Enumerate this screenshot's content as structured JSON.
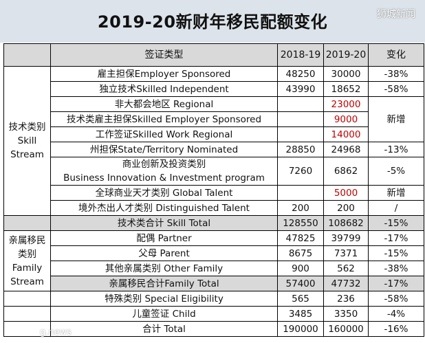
{
  "title": "2019-20新财年移民配额变化",
  "watermark": "狮城新闻",
  "footer_watermark": "g.news",
  "headers": {
    "type": "签证类型",
    "fy1": "2018-19",
    "fy2": "2019-20",
    "change": "变化"
  },
  "categories": {
    "skill": "技术类别\nSkill\nStream",
    "family": "亲属移民\n类别\nFamily\nStream"
  },
  "rows": [
    {
      "name": "雇主担保Employer Sponsored",
      "v1": "48250",
      "v2": "30000",
      "change": "-38%"
    },
    {
      "name": "独立技术Skilled Independent",
      "v1": "43990",
      "v2": "18652",
      "change": "-58%"
    },
    {
      "name": "非大都会地区 Regional",
      "v1": "",
      "v2": "23000",
      "change": "新增"
    },
    {
      "name": "技术类雇主担保Skilled Employer Sponsored",
      "v1": "",
      "v2": "9000",
      "change": ""
    },
    {
      "name": "工作签证Skilled Work Regional",
      "v1": "",
      "v2": "14000",
      "change": ""
    },
    {
      "name": "州担保State/Territory Nominated",
      "v1": "28850",
      "v2": "24968",
      "change": "-13%"
    },
    {
      "name": "商业创新及投资类别\nBusiness Innovation & Investment program",
      "v1": "7260",
      "v2": "6862",
      "change": "-5%"
    },
    {
      "name": "全球商业天才类别 Global Talent",
      "v1": "",
      "v2": "5000",
      "change": "新增"
    },
    {
      "name": "境外杰出人才类别 Distinguished Talent",
      "v1": "200",
      "v2": "200",
      "change": "/"
    },
    {
      "name": "技术类合计 Skill Total",
      "v1": "128550",
      "v2": "108682",
      "change": "-15%"
    },
    {
      "name": "配偶 Partner",
      "v1": "47825",
      "v2": "39799",
      "change": "-17%"
    },
    {
      "name": "父母 Parent",
      "v1": "8675",
      "v2": "7371",
      "change": "-15%"
    },
    {
      "name": "其他亲属类别 Other Family",
      "v1": "900",
      "v2": "562",
      "change": "-38%"
    },
    {
      "name": "亲属移民合计Family Total",
      "v1": "57400",
      "v2": "47732",
      "change": "-17%"
    },
    {
      "name": "特殊类别 Special Eligibility",
      "v1": "565",
      "v2": "236",
      "change": "-58%"
    },
    {
      "name": "儿童签证 Child",
      "v1": "3485",
      "v2": "3350",
      "change": "-4%"
    },
    {
      "name": "合计 Total",
      "v1": "190000",
      "v2": "160000",
      "change": "-16%"
    }
  ],
  "colors": {
    "header_bg": "#d9d9d9",
    "title_bg": "#dde3ea",
    "new_value": "#c00000"
  }
}
